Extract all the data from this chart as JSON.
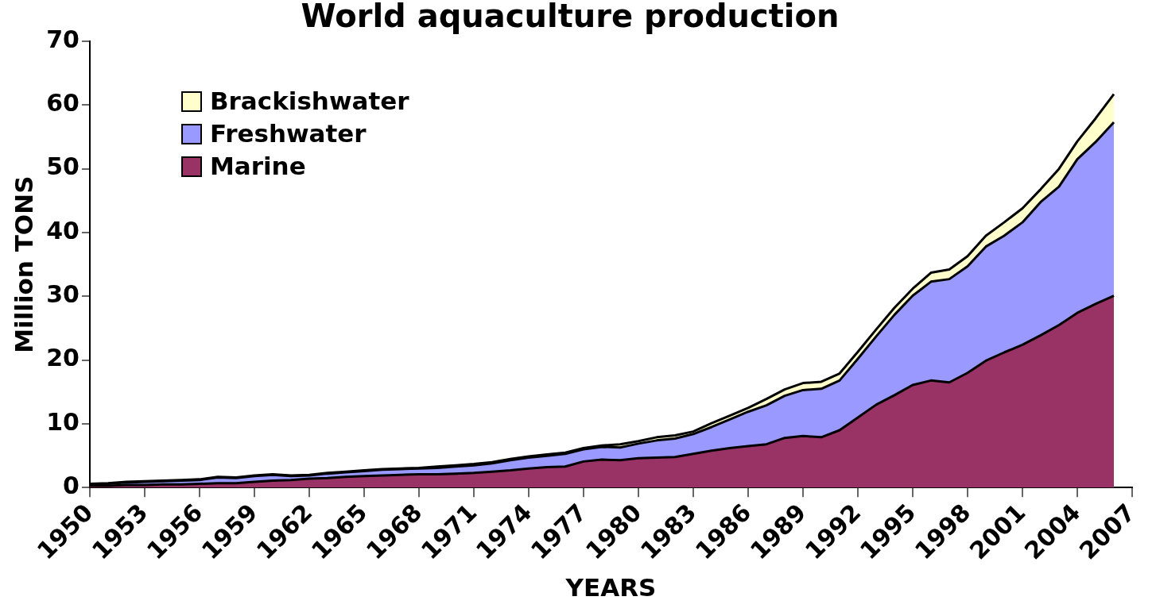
{
  "chart_data": {
    "type": "area",
    "title": "World aquaculture production",
    "xlabel": "YEARS",
    "ylabel": "Million TONS",
    "categories": [
      "1950",
      null,
      null,
      "1953",
      null,
      null,
      "1956",
      null,
      null,
      "1959",
      null,
      null,
      "1962",
      null,
      null,
      "1965",
      null,
      null,
      "1968",
      null,
      null,
      "1971",
      null,
      null,
      "1974",
      null,
      null,
      "1977",
      null,
      null,
      "1980",
      null,
      null,
      "1983",
      null,
      null,
      "1986",
      null,
      null,
      "1989",
      null,
      null,
      "1992",
      null,
      null,
      "1995",
      null,
      null,
      "1998",
      null,
      null,
      "2001",
      null,
      null,
      "2004",
      null,
      null,
      "2007"
    ],
    "stacked": true,
    "ylim": [
      0,
      70
    ],
    "yticks": [
      0,
      10,
      20,
      30,
      40,
      50,
      60,
      70
    ],
    "grid": false,
    "legend": "top left",
    "marker": "none",
    "series": [
      {
        "name": "Marine",
        "color": "#993366",
        "values": [
          0.3,
          0.3,
          0.4,
          0.4,
          0.5,
          0.5,
          0.6,
          0.7,
          0.7,
          0.9,
          1.1,
          1.2,
          1.4,
          1.5,
          1.7,
          1.8,
          1.9,
          2.0,
          2.1,
          2.1,
          2.2,
          2.3,
          2.5,
          2.7,
          3.0,
          3.2,
          3.3,
          4.1,
          4.4,
          4.3,
          4.6,
          4.7,
          4.8,
          5.3,
          5.8,
          6.2,
          6.5,
          6.8,
          7.8,
          8.1,
          7.9,
          9.0,
          11.0,
          13.0,
          14.5,
          16.1,
          16.8,
          16.5,
          18.0,
          19.9,
          21.2,
          22.4,
          23.9,
          25.5,
          27.4,
          28.8,
          30.1,
          null
        ]
      },
      {
        "name": "Freshwater",
        "color": "#9999ff",
        "values": [
          0.2,
          0.3,
          0.4,
          0.5,
          0.5,
          0.6,
          0.6,
          0.9,
          0.8,
          0.9,
          0.9,
          0.6,
          0.5,
          0.7,
          0.7,
          0.8,
          0.9,
          0.9,
          0.9,
          1.0,
          1.1,
          1.2,
          1.3,
          1.6,
          1.7,
          1.8,
          2.0,
          1.9,
          2.0,
          2.0,
          2.3,
          2.7,
          2.9,
          3.1,
          3.7,
          4.5,
          5.4,
          6.1,
          6.6,
          7.2,
          7.6,
          7.8,
          9.2,
          10.7,
          12.6,
          14.0,
          15.5,
          16.2,
          16.7,
          17.9,
          18.3,
          19.2,
          20.9,
          21.7,
          24.1,
          25.4,
          27.2,
          null
        ]
      },
      {
        "name": "Brackishwater",
        "color": "#ffffcc",
        "values": [
          0.1,
          0.1,
          0.1,
          0.1,
          0.1,
          0.1,
          0.1,
          0.1,
          0.1,
          0.1,
          0.1,
          0.1,
          0.1,
          0.1,
          0.1,
          0.1,
          0.1,
          0.1,
          0.1,
          0.2,
          0.2,
          0.2,
          0.2,
          0.2,
          0.2,
          0.2,
          0.2,
          0.2,
          0.2,
          0.5,
          0.4,
          0.5,
          0.5,
          0.4,
          0.6,
          0.6,
          0.6,
          1.0,
          1.0,
          1.1,
          1.1,
          1.1,
          1.1,
          1.1,
          1.1,
          1.1,
          1.4,
          1.5,
          1.6,
          1.7,
          2.1,
          2.2,
          2.0,
          2.8,
          2.8,
          3.7,
          4.4,
          null
        ]
      }
    ]
  }
}
